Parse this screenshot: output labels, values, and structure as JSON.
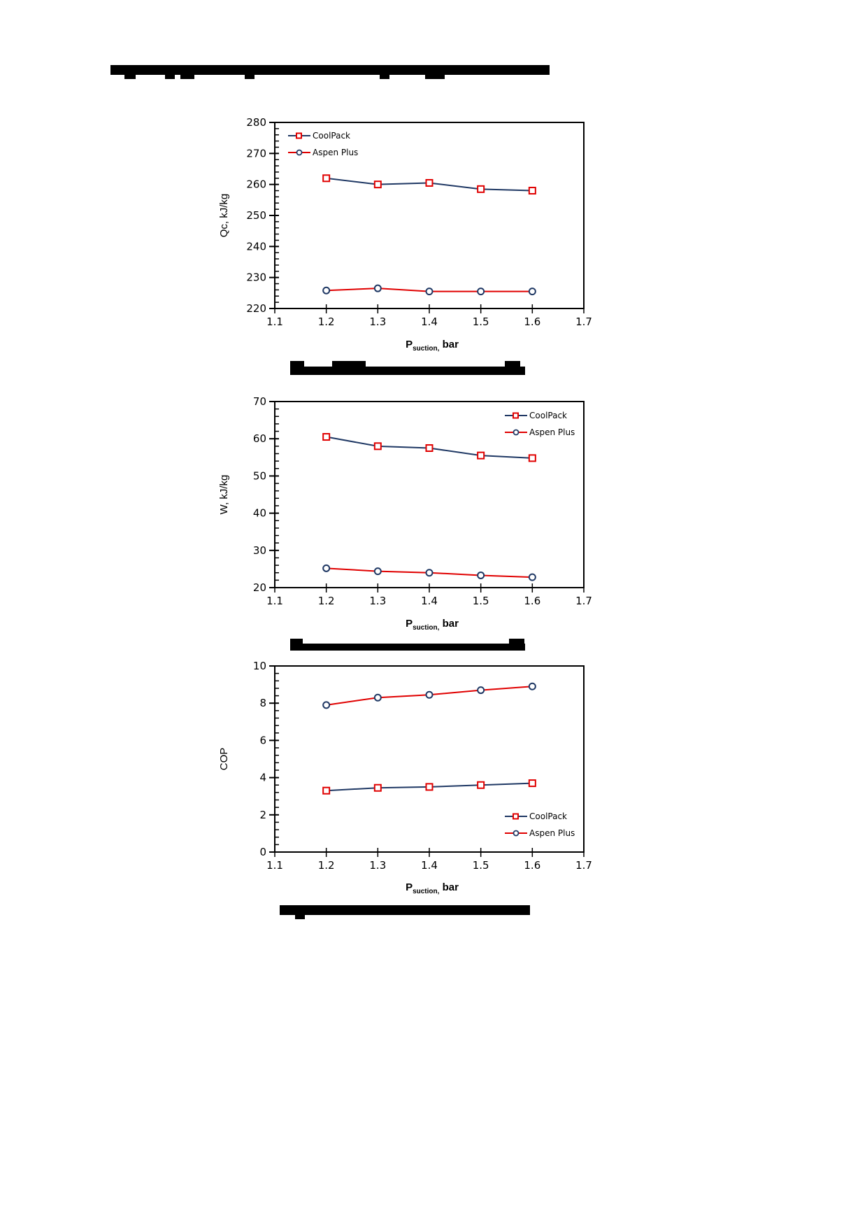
{
  "page": {
    "heading_redacted": true,
    "captions_redacted": [
      true,
      true,
      true
    ]
  },
  "colors": {
    "coolpack_line": "#1f3864",
    "coolpack_marker": "#e00000",
    "aspen_line": "#e00000",
    "aspen_marker": "#1f3864",
    "axis": "#000000"
  },
  "chart_data": [
    {
      "type": "line",
      "title": "",
      "xlabel": "P_suction, bar",
      "xlabel_main": "P",
      "xlabel_sub": "suction,",
      "xlabel_tail": " bar",
      "ylabel": "Qc, kJ/kg",
      "x": [
        1.2,
        1.3,
        1.4,
        1.5,
        1.6
      ],
      "xlim": [
        1.1,
        1.7
      ],
      "ylim": [
        220,
        280
      ],
      "xticks": [
        "1.1",
        "1.2",
        "1.3",
        "1.4",
        "1.5",
        "1.6",
        "1.7"
      ],
      "yticks": [
        "220",
        "230",
        "240",
        "250",
        "260",
        "270",
        "280"
      ],
      "legend_position": "upper-left",
      "grid": false,
      "series": [
        {
          "name": "CoolPack",
          "marker": "square",
          "values": [
            262.0,
            260.0,
            260.5,
            258.5,
            258.0
          ]
        },
        {
          "name": "Aspen Plus",
          "marker": "circle",
          "values": [
            225.8,
            226.5,
            225.5,
            225.5,
            225.5
          ]
        }
      ]
    },
    {
      "type": "line",
      "title": "",
      "xlabel": "P_suction, bar",
      "xlabel_main": "P",
      "xlabel_sub": "suction,",
      "xlabel_tail": " bar",
      "ylabel": "W, kJ/kg",
      "x": [
        1.2,
        1.3,
        1.4,
        1.5,
        1.6
      ],
      "xlim": [
        1.1,
        1.7
      ],
      "ylim": [
        20,
        70
      ],
      "xticks": [
        "1.1",
        "1.2",
        "1.3",
        "1.4",
        "1.5",
        "1.6",
        "1.7"
      ],
      "yticks": [
        "20",
        "30",
        "40",
        "50",
        "60",
        "70"
      ],
      "legend_position": "upper-right",
      "grid": false,
      "series": [
        {
          "name": "CoolPack",
          "marker": "square",
          "values": [
            60.5,
            58.0,
            57.5,
            55.5,
            54.8
          ]
        },
        {
          "name": "Aspen Plus",
          "marker": "circle",
          "values": [
            25.2,
            24.4,
            24.0,
            23.3,
            22.8
          ]
        }
      ]
    },
    {
      "type": "line",
      "title": "",
      "xlabel": "P_suction, bar",
      "xlabel_main": "P",
      "xlabel_sub": "suction,",
      "xlabel_tail": " bar",
      "ylabel": "COP",
      "x": [
        1.2,
        1.3,
        1.4,
        1.5,
        1.6
      ],
      "xlim": [
        1.1,
        1.7
      ],
      "ylim": [
        0,
        10
      ],
      "xticks": [
        "1.1",
        "1.2",
        "1.3",
        "1.4",
        "1.5",
        "1.6",
        "1.7"
      ],
      "yticks": [
        "0",
        "2",
        "4",
        "6",
        "8",
        "10"
      ],
      "legend_position": "lower-right",
      "grid": false,
      "series": [
        {
          "name": "CoolPack",
          "marker": "square",
          "values": [
            3.3,
            3.45,
            3.5,
            3.6,
            3.7
          ]
        },
        {
          "name": "Aspen Plus",
          "marker": "circle",
          "values": [
            7.9,
            8.3,
            8.45,
            8.7,
            8.9
          ]
        }
      ]
    }
  ]
}
